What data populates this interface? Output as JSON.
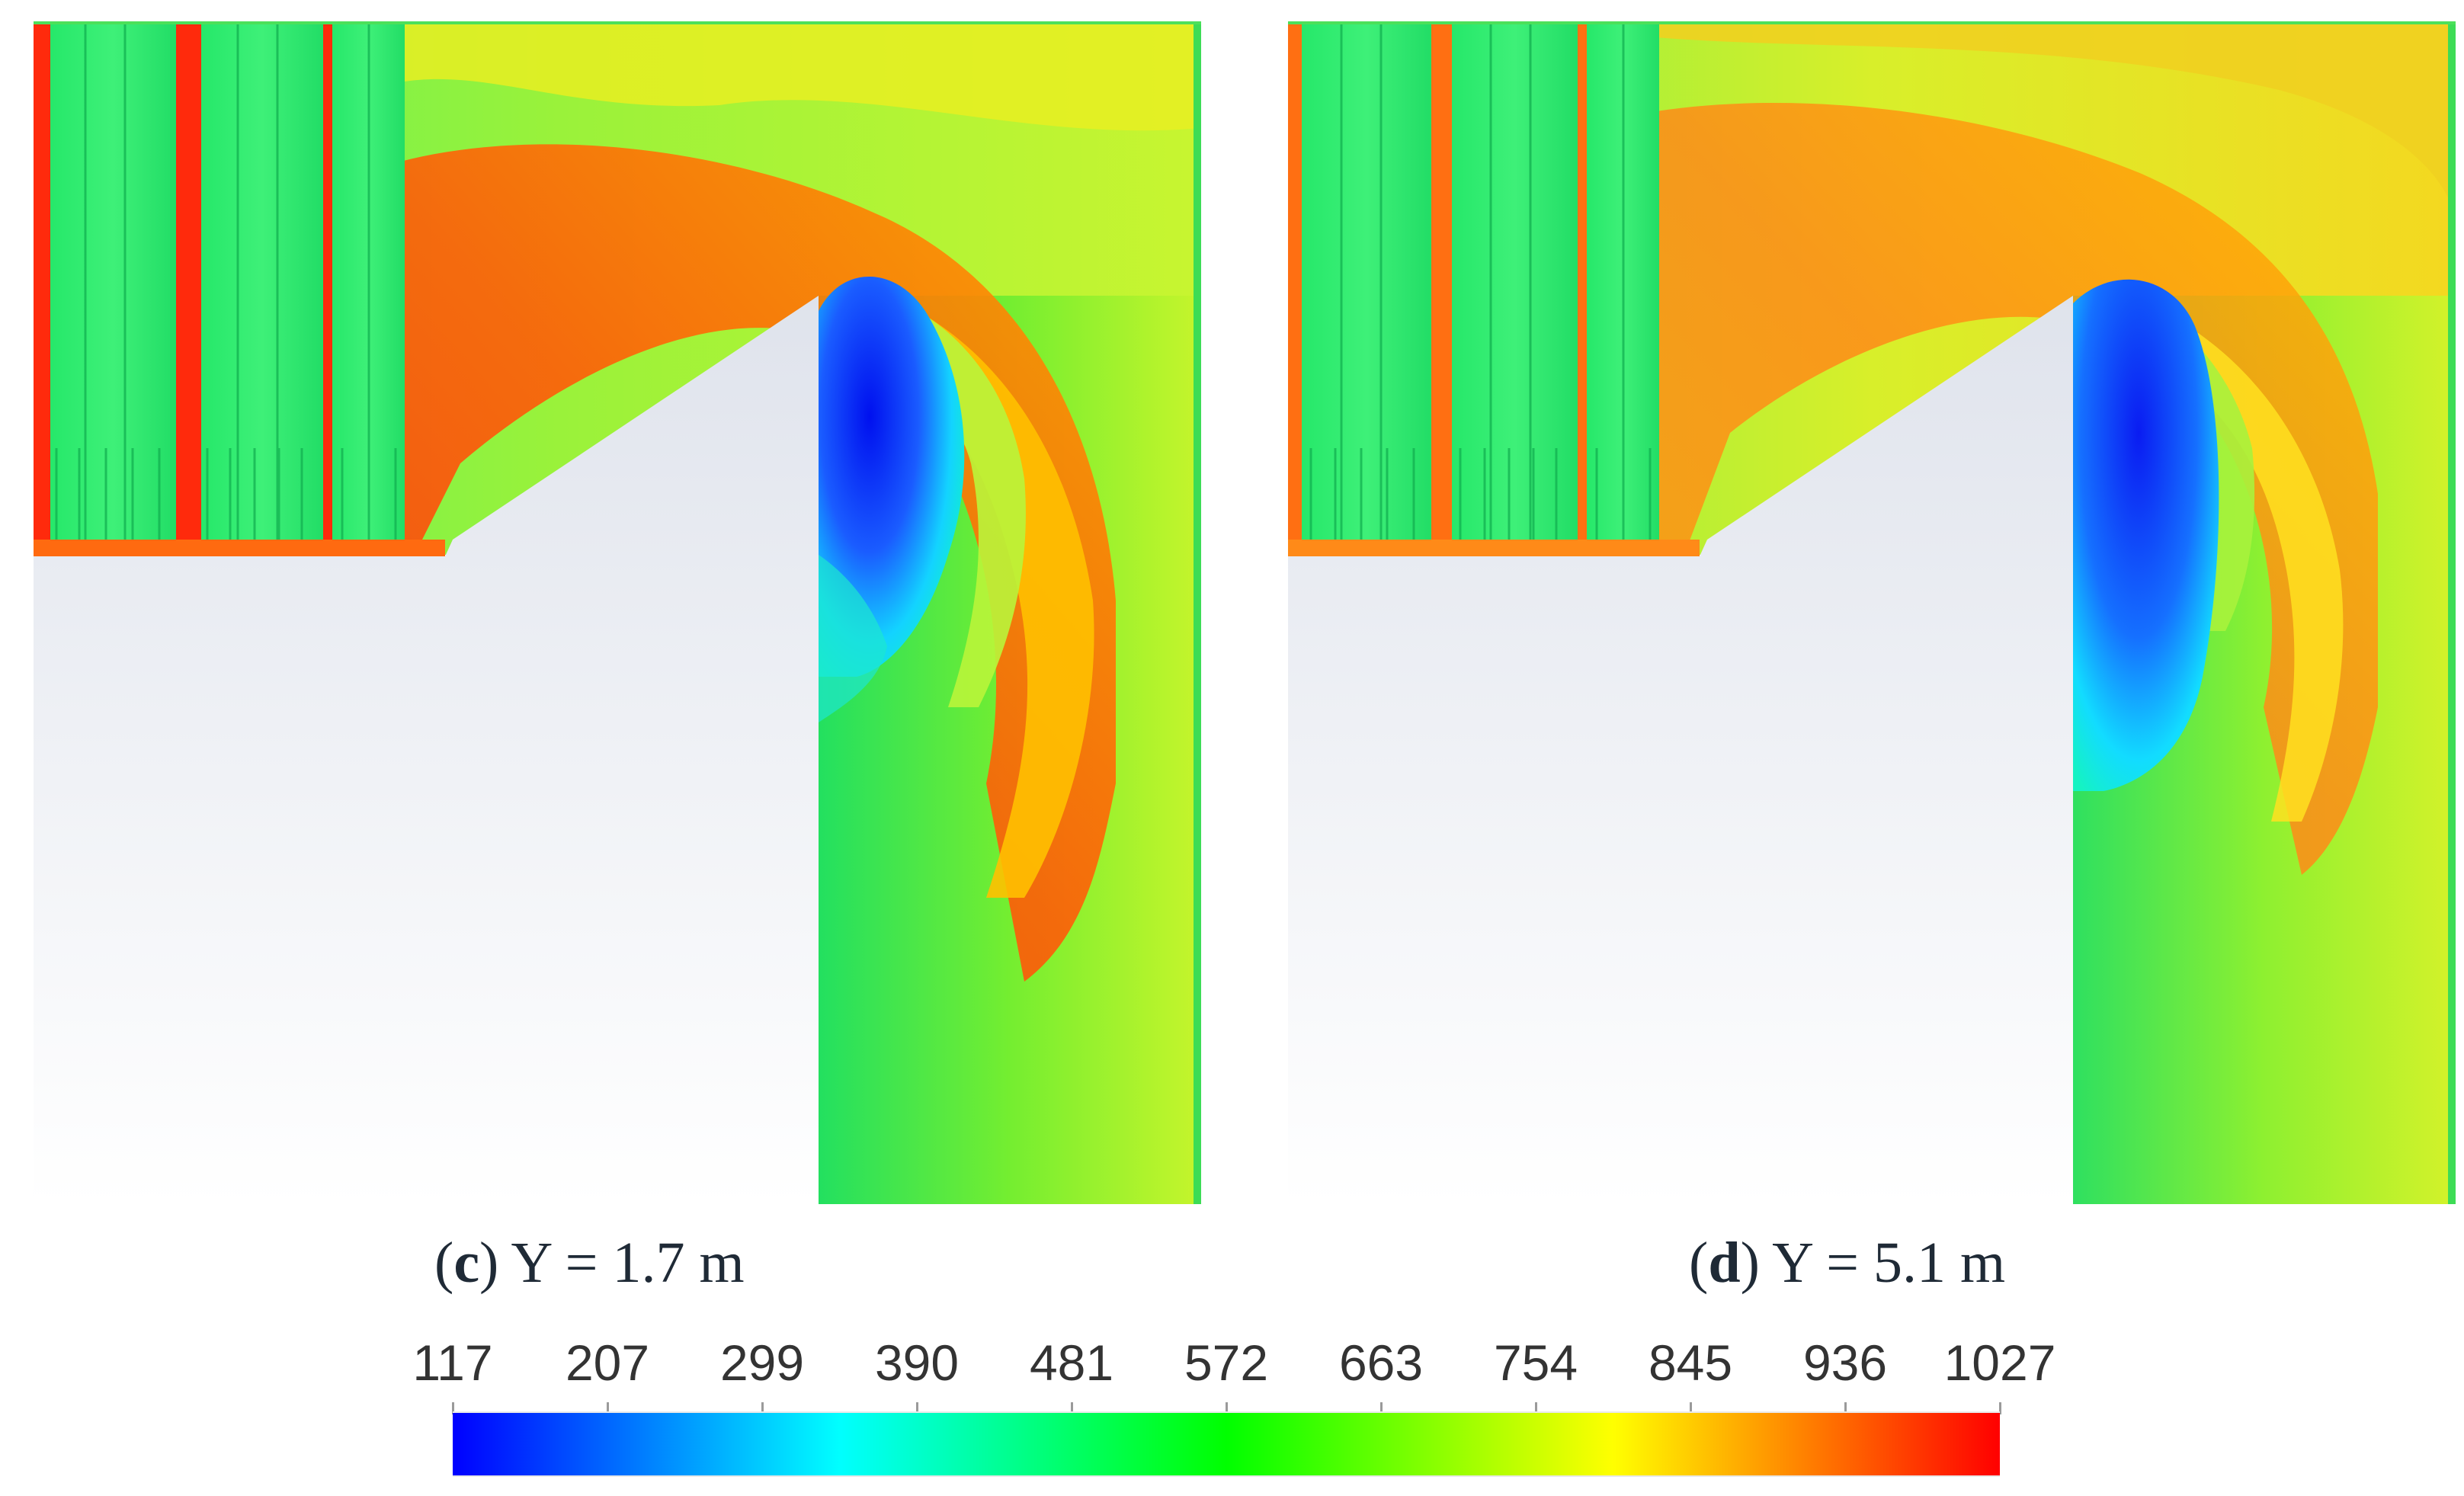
{
  "figure": {
    "panels": [
      {
        "letter": "c",
        "rest": ") Y = 1.7 m",
        "open": "("
      },
      {
        "letter": "d",
        "rest": ") Y = 5.1 m",
        "open": "("
      }
    ],
    "colorbar": {
      "ticks": [
        "117",
        "207",
        "299",
        "390",
        "481",
        "572",
        "663",
        "754",
        "845",
        "936",
        "1027"
      ],
      "colors": [
        "#0000ff",
        "#00ffff",
        "#00ff00",
        "#ffff00",
        "#ff0000"
      ]
    }
  }
}
